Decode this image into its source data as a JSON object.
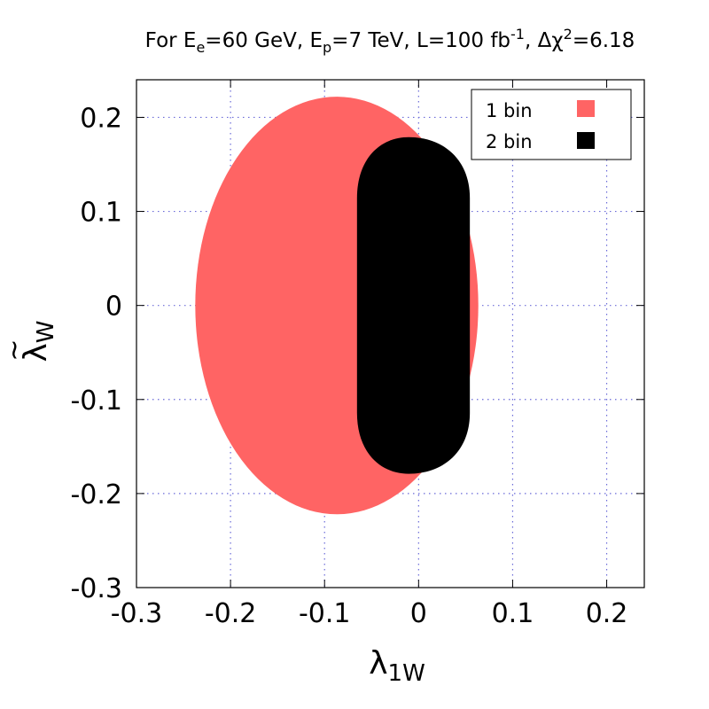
{
  "chart_data": {
    "type": "area",
    "title": {
      "prefix": "For E",
      "e_sub": "e",
      "mid1": "=60 GeV, E",
      "p_sub": "p",
      "mid2": "=7 TeV, L=100 fb",
      "lumi_sup": "-1",
      "mid3": ", Δχ",
      "chi_sup": "2",
      "suffix": "=6.18"
    },
    "xlabel": {
      "main": "λ",
      "sub": "1W"
    },
    "ylabel": {
      "main": "λ",
      "accent": "~",
      "sub": "W"
    },
    "xlim": [
      -0.3,
      0.24
    ],
    "ylim": [
      -0.3,
      0.24
    ],
    "xticks": [
      {
        "value": -0.3,
        "label": "-0.3"
      },
      {
        "value": -0.2,
        "label": "-0.2"
      },
      {
        "value": -0.1,
        "label": "-0.1"
      },
      {
        "value": 0,
        "label": "0"
      },
      {
        "value": 0.1,
        "label": "0.1"
      },
      {
        "value": 0.2,
        "label": "0.2"
      }
    ],
    "yticks": [
      {
        "value": -0.3,
        "label": "-0.3"
      },
      {
        "value": -0.2,
        "label": "-0.2"
      },
      {
        "value": -0.1,
        "label": "-0.1"
      },
      {
        "value": 0,
        "label": "0"
      },
      {
        "value": 0.1,
        "label": "0.1"
      },
      {
        "value": 0.2,
        "label": "0.2"
      }
    ],
    "grid": true,
    "legend_position": "top-right",
    "series": [
      {
        "name": "1 bin",
        "color": "#ff6464",
        "shape": "ellipse",
        "center": [
          -0.087,
          0.0
        ],
        "x_range": [
          -0.188,
          0.113
        ],
        "y_range": [
          -0.222,
          0.222
        ]
      },
      {
        "name": "2 bin",
        "color": "#000000",
        "shape": "rounded-oval",
        "center": [
          -0.0105,
          0.0
        ],
        "x_range": [
          -0.0655,
          0.0545
        ],
        "y_range": [
          -0.179,
          0.179
        ],
        "cap_height": 0.065
      }
    ]
  }
}
